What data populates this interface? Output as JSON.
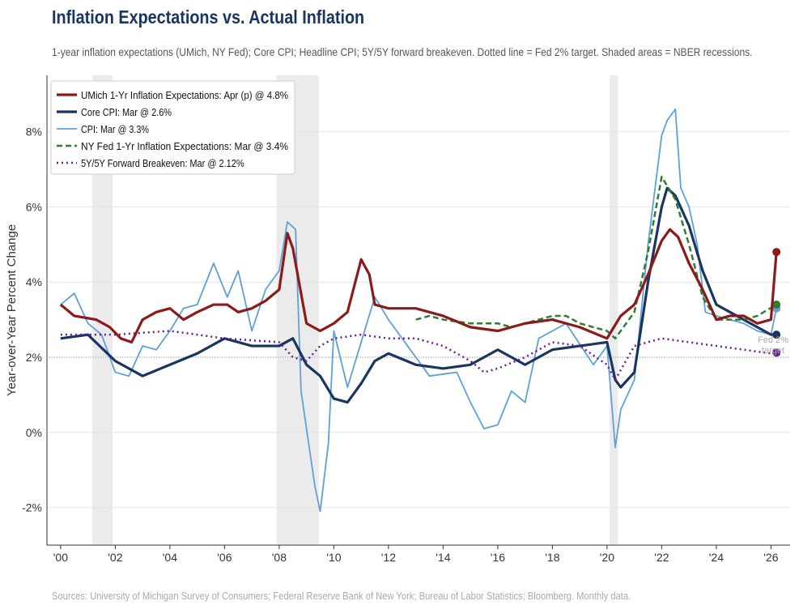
{
  "title": "Inflation Expectations vs. Actual Inflation",
  "subtitle": "1-year inflation expectations (UMich, NY Fed); Core CPI; Headline CPI; 5Y/5Y forward breakeven. Dotted line = Fed 2% target. Shaded areas = NBER recessions.",
  "source": "Sources: University of Michigan Survey of Consumers; Federal Reserve Bank of New York; Bureau of Labor Statistics; Bloomberg. Monthly data.",
  "chart_data": {
    "type": "line",
    "ylabel": "Year-over-Year Percent Change",
    "xlim": [
      1999.5,
      2026.7
    ],
    "ylim": [
      -3,
      9.5
    ],
    "xticks": [
      2000,
      2002,
      2004,
      2006,
      2008,
      2010,
      2012,
      2014,
      2016,
      2018,
      2020,
      2022,
      2024,
      2026
    ],
    "xtick_labels": [
      "'00",
      "'02",
      "'04",
      "'06",
      "'08",
      "'10",
      "'12",
      "'14",
      "'16",
      "'18",
      "'20",
      "'22",
      "'24",
      "'26"
    ],
    "yticks": [
      -2,
      0,
      2,
      4,
      6,
      8
    ],
    "ytick_labels": [
      "-2%",
      "0%",
      "2%",
      "4%",
      "6%",
      "8%"
    ],
    "grid": true,
    "legend": "top-left",
    "reference_line": {
      "y": 2,
      "label": "Fed 2% target"
    },
    "recessions": [
      [
        2001.16,
        2001.9
      ],
      [
        2007.9,
        2009.45
      ],
      [
        2020.1,
        2020.4
      ]
    ],
    "series": [
      {
        "name": "UMich 1-Yr Inflation Expectations: Apr (p) @ 4.8%",
        "color": "#8b1a1a",
        "style": "solid",
        "x": [
          2000,
          2000.5,
          2001.3,
          2001.8,
          2002.2,
          2002.6,
          2003,
          2003.5,
          2004,
          2004.5,
          2005,
          2005.6,
          2006.1,
          2006.5,
          2007,
          2007.5,
          2008,
          2008.3,
          2008.5,
          2008.8,
          2009,
          2009.5,
          2010,
          2010.5,
          2011,
          2011.3,
          2011.5,
          2012,
          2013,
          2014,
          2015,
          2016,
          2017,
          2018,
          2019,
          2020,
          2020.5,
          2021,
          2021.5,
          2022,
          2022.3,
          2022.6,
          2023,
          2023.5,
          2024,
          2024.5,
          2025,
          2025.5,
          2026,
          2026.2
        ],
        "y": [
          3.4,
          3.1,
          3.0,
          2.8,
          2.5,
          2.4,
          3.0,
          3.2,
          3.3,
          3.0,
          3.2,
          3.4,
          3.4,
          3.2,
          3.3,
          3.5,
          3.8,
          5.3,
          4.9,
          3.7,
          2.9,
          2.7,
          2.9,
          3.2,
          4.6,
          4.2,
          3.4,
          3.3,
          3.3,
          3.1,
          2.8,
          2.7,
          2.9,
          3.0,
          2.8,
          2.5,
          3.1,
          3.4,
          4.2,
          5.1,
          5.4,
          5.2,
          4.5,
          3.8,
          3.0,
          3.1,
          3.1,
          2.9,
          3.0,
          4.8
        ]
      },
      {
        "name": "Core CPI: Mar @ 2.6%",
        "color": "#1a3560",
        "style": "solid",
        "x": [
          2000,
          2001,
          2002,
          2003,
          2004,
          2005,
          2006,
          2007,
          2008,
          2008.5,
          2009,
          2009.5,
          2010,
          2010.5,
          2011,
          2011.5,
          2012,
          2013,
          2014,
          2015,
          2016,
          2017,
          2018,
          2019,
          2020,
          2020.3,
          2020.5,
          2021,
          2021.5,
          2022,
          2022.2,
          2022.5,
          2023,
          2023.5,
          2024,
          2024.5,
          2025,
          2025.5,
          2026,
          2026.2
        ],
        "y": [
          2.5,
          2.6,
          1.9,
          1.5,
          1.8,
          2.1,
          2.5,
          2.3,
          2.3,
          2.5,
          1.8,
          1.5,
          0.9,
          0.8,
          1.3,
          1.9,
          2.1,
          1.8,
          1.7,
          1.8,
          2.2,
          1.8,
          2.2,
          2.3,
          2.4,
          1.4,
          1.2,
          1.6,
          4.0,
          6.0,
          6.5,
          6.3,
          5.5,
          4.3,
          3.4,
          3.2,
          3.0,
          2.8,
          2.6,
          2.6
        ]
      },
      {
        "name": "CPI: Mar @ 3.3%",
        "color": "#5fa0d8",
        "style": "thin",
        "x": [
          2000,
          2000.5,
          2001,
          2001.5,
          2002,
          2002.5,
          2003,
          2003.5,
          2004,
          2004.5,
          2005,
          2005.6,
          2006.1,
          2006.5,
          2007,
          2007.5,
          2008,
          2008.3,
          2008.6,
          2008.8,
          2009.3,
          2009.5,
          2009.8,
          2010,
          2010.5,
          2011.5,
          2012,
          2012.5,
          2013,
          2013.5,
          2014.5,
          2015,
          2015.5,
          2016,
          2016.5,
          2017,
          2017.5,
          2018.5,
          2019.5,
          2020,
          2020.3,
          2020.5,
          2021,
          2021.5,
          2022,
          2022.2,
          2022.5,
          2022.7,
          2023,
          2023.3,
          2023.6,
          2024,
          2024.5,
          2025,
          2025.5,
          2026,
          2026.2
        ],
        "y": [
          3.4,
          3.7,
          2.9,
          2.6,
          1.6,
          1.5,
          2.3,
          2.2,
          2.7,
          3.3,
          3.4,
          4.5,
          3.6,
          4.3,
          2.7,
          3.8,
          4.3,
          5.6,
          5.4,
          1.1,
          -1.4,
          -2.1,
          -0.3,
          2.7,
          1.2,
          3.6,
          3.0,
          2.5,
          2.0,
          1.5,
          1.6,
          0.8,
          0.1,
          0.2,
          1.1,
          0.8,
          2.5,
          2.9,
          1.8,
          2.3,
          -0.4,
          0.6,
          1.4,
          5.0,
          7.9,
          8.3,
          8.6,
          6.5,
          6.0,
          5.0,
          3.2,
          3.1,
          3.0,
          2.9,
          2.7,
          2.6,
          3.3
        ]
      },
      {
        "name": "NY Fed 1-Yr Inflation Expectations: Mar @ 3.4%",
        "color": "#2e7d32",
        "style": "dashed",
        "x": [
          2013,
          2013.5,
          2014,
          2015,
          2016,
          2016.5,
          2017,
          2018,
          2018.5,
          2019,
          2020,
          2020.3,
          2021,
          2021.5,
          2022,
          2022.5,
          2023,
          2023.5,
          2024,
          2025,
          2025.5,
          2026.2
        ],
        "y": [
          3.0,
          3.1,
          3.0,
          2.9,
          2.9,
          2.8,
          2.9,
          3.1,
          3.1,
          2.9,
          2.7,
          2.5,
          3.2,
          4.8,
          6.8,
          6.2,
          5.0,
          3.6,
          3.0,
          3.0,
          3.1,
          3.4
        ]
      },
      {
        "name": "5Y/5Y Forward Breakeven: Mar @ 2.12%",
        "color": "#6a1b9a",
        "style": "dotted",
        "x": [
          2000,
          2002,
          2004,
          2006,
          2008,
          2008.5,
          2009,
          2009.5,
          2010,
          2011,
          2012,
          2013,
          2014,
          2015,
          2015.5,
          2016,
          2017,
          2018,
          2019,
          2020,
          2020.3,
          2021,
          2022,
          2023,
          2024,
          2025,
          2026,
          2026.2
        ],
        "y": [
          2.6,
          2.6,
          2.7,
          2.5,
          2.4,
          2.0,
          1.9,
          2.3,
          2.5,
          2.6,
          2.5,
          2.5,
          2.3,
          1.9,
          1.6,
          1.7,
          2.0,
          2.4,
          2.3,
          1.8,
          1.4,
          2.3,
          2.5,
          2.4,
          2.3,
          2.2,
          2.1,
          2.12
        ]
      }
    ]
  }
}
